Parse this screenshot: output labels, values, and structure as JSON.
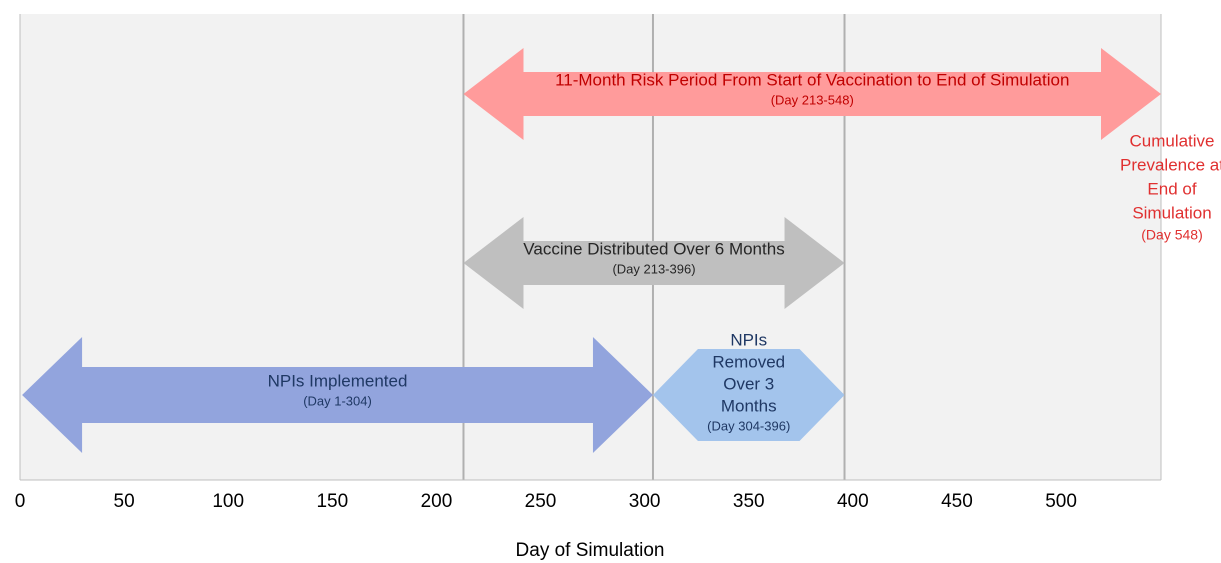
{
  "chart_data": {
    "type": "timeline",
    "xlabel": "Day of Simulation",
    "xlim": [
      0,
      548
    ],
    "xticks": [
      0,
      50,
      100,
      150,
      200,
      250,
      300,
      350,
      400,
      450,
      500
    ],
    "vlines": [
      213,
      304,
      396
    ],
    "arrows": [
      {
        "label": [
          "11-Month Risk Period From Start of Vaccination to End of Simulation"
        ],
        "sublabel": "(Day 213-548)",
        "start": 213,
        "end": 548,
        "color": "#ff9b9b",
        "text_color": "#c00000"
      },
      {
        "label": [
          "Vaccine Distributed Over 6 Months"
        ],
        "sublabel": "(Day 213-396)",
        "start": 213,
        "end": 396,
        "color": "#bfbfbf",
        "text_color": "#262626"
      },
      {
        "label": [
          "NPIs Implemented"
        ],
        "sublabel": "(Day 1-304)",
        "start": 1,
        "end": 304,
        "color": "#92a4dd",
        "text_color": "#1f3864"
      },
      {
        "label": [
          "NPIs",
          "Removed",
          "Over 3",
          "Months"
        ],
        "sublabel": "(Day 304-396)",
        "start": 304,
        "end": 396,
        "color": "#a3c4ec",
        "text_color": "#1f3864"
      }
    ],
    "annotation": {
      "lines": [
        "Cumulative",
        "Prevalence at",
        "End of",
        "Simulation"
      ],
      "sublabel": "(Day 548)",
      "color": "#e03030"
    }
  }
}
